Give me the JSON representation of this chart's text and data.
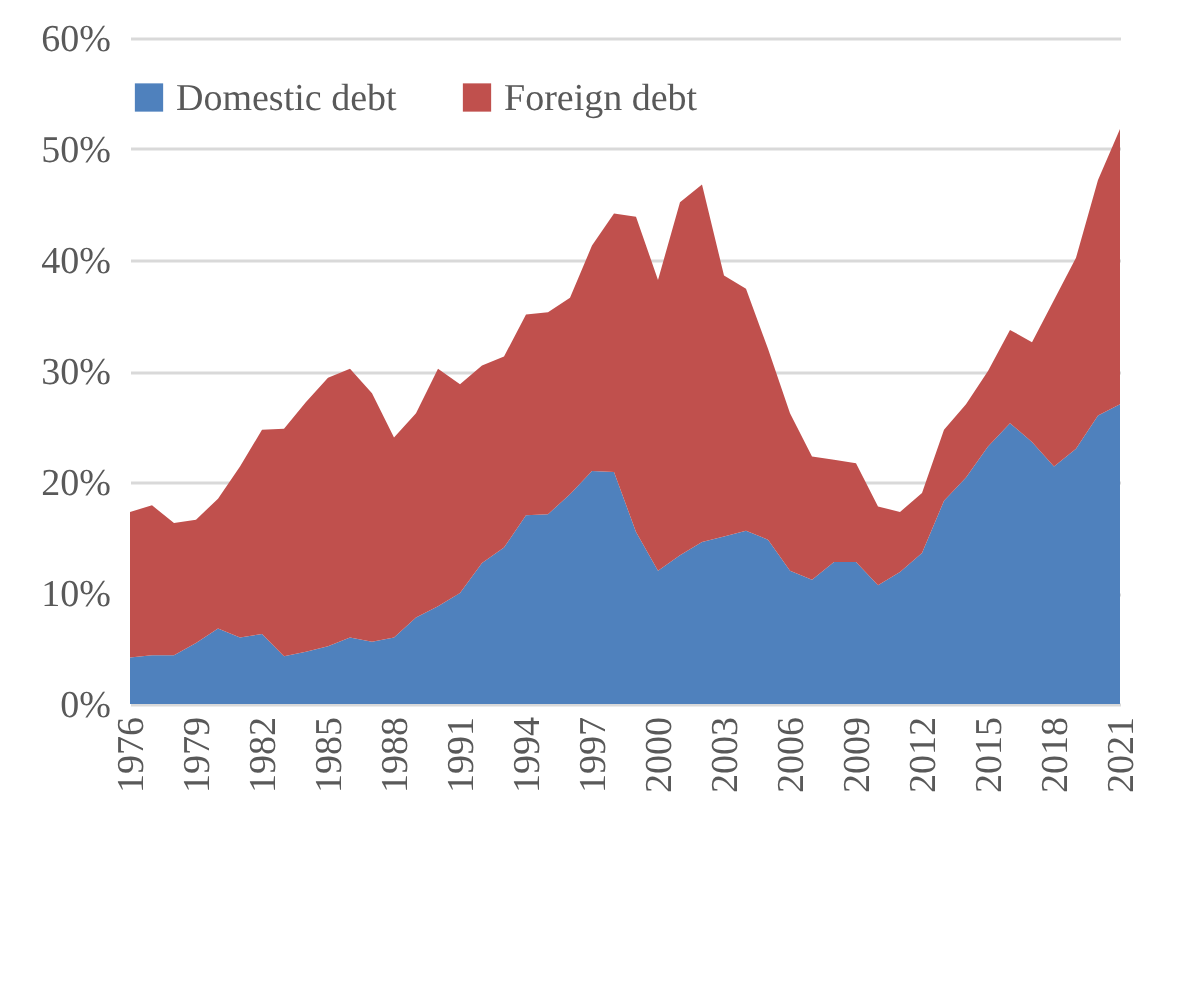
{
  "chart_data": {
    "type": "area",
    "stacked": true,
    "x": [
      1976,
      1977,
      1978,
      1979,
      1980,
      1981,
      1982,
      1983,
      1984,
      1985,
      1986,
      1987,
      1988,
      1989,
      1990,
      1991,
      1992,
      1993,
      1994,
      1995,
      1996,
      1997,
      1998,
      1999,
      2000,
      2001,
      2002,
      2003,
      2004,
      2005,
      2006,
      2007,
      2008,
      2009,
      2010,
      2011,
      2012,
      2013,
      2014,
      2015,
      2016,
      2017,
      2018,
      2019,
      2020,
      2021
    ],
    "xlim": [
      1976,
      2021
    ],
    "xticks": [
      1976,
      1979,
      1982,
      1985,
      1988,
      1991,
      1994,
      1997,
      2000,
      2003,
      2006,
      2009,
      2012,
      2015,
      2018,
      2021
    ],
    "ylim": [
      0,
      60
    ],
    "yticks": [
      {
        "value": 0,
        "label": "0%"
      },
      {
        "value": 10,
        "label": "10%"
      },
      {
        "value": 20,
        "label": "20%"
      },
      {
        "value": 30,
        "label": "30%"
      },
      {
        "value": 40,
        "label": "40%"
      },
      {
        "value": 50,
        "label": "50%"
      },
      {
        "value": 60,
        "label": "60%"
      }
    ],
    "grid": "y",
    "legend": "top",
    "series": [
      {
        "name": "Domestic debt",
        "color": "#4f81bd",
        "values": [
          4.2,
          4.4,
          4.4,
          5.5,
          6.8,
          6.0,
          6.3,
          4.3,
          4.7,
          5.2,
          6.0,
          5.6,
          6.0,
          7.8,
          8.8,
          10.0,
          12.7,
          14.1,
          17.0,
          17.1,
          18.9,
          21.0,
          20.9,
          15.5,
          12.0,
          13.4,
          14.6,
          15.1,
          15.6,
          14.8,
          12.0,
          11.2,
          12.8,
          12.8,
          10.7,
          11.9,
          13.6,
          18.3,
          20.4,
          23.2,
          25.3,
          23.6,
          21.4,
          23.0,
          26.0,
          27.0
        ]
      },
      {
        "name": "Foreign debt",
        "color": "#c0504d",
        "values": [
          13.1,
          13.5,
          11.9,
          11.1,
          11.7,
          15.4,
          18.4,
          20.5,
          22.5,
          24.2,
          24.2,
          22.4,
          18.0,
          18.4,
          21.4,
          18.8,
          17.8,
          17.2,
          18.1,
          18.2,
          17.7,
          20.3,
          23.3,
          28.4,
          26.2,
          31.8,
          32.2,
          23.5,
          21.8,
          17.2,
          14.2,
          11.1,
          9.2,
          8.9,
          7.1,
          5.4,
          5.4,
          6.4,
          6.6,
          6.8,
          8.4,
          9.0,
          15.0,
          17.2,
          21.2,
          24.8
        ]
      }
    ]
  }
}
